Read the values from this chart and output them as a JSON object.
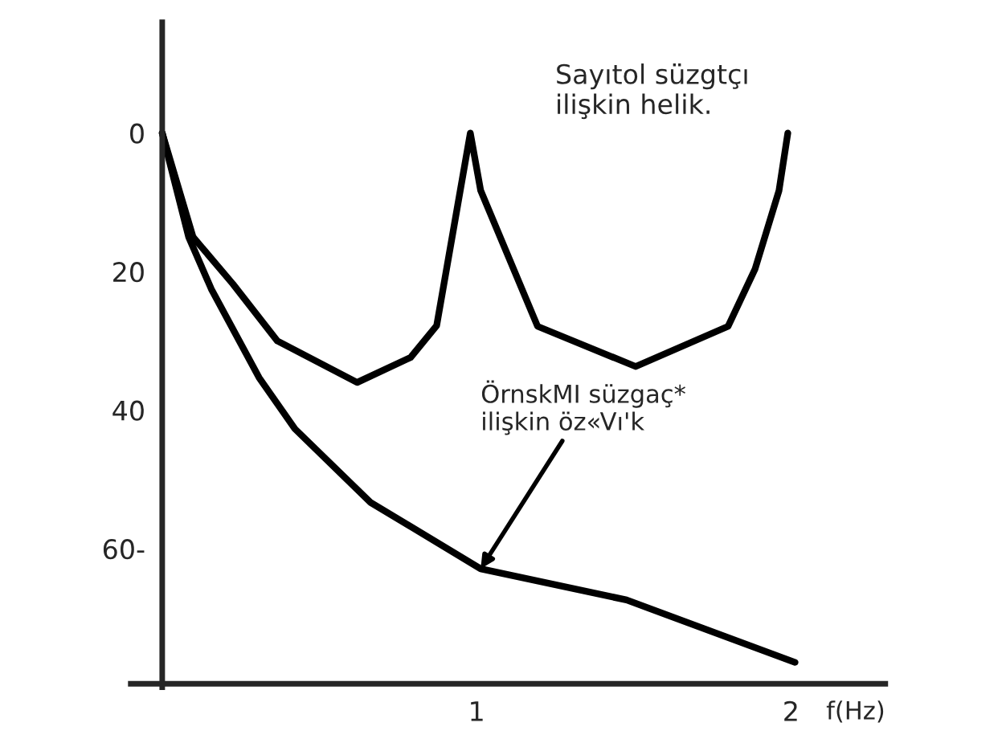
{
  "chart_data": {
    "type": "line",
    "xlabel": "f(Hz)",
    "xlim": [
      -0.1,
      2.3
    ],
    "ylim": [
      80,
      -16
    ],
    "xticks": [
      1,
      2
    ],
    "yticks": [
      0,
      20,
      40,
      {
        "value": 60,
        "label": "60-"
      }
    ],
    "series": [
      {
        "color": "#000000",
        "x": [
          0,
          0.098,
          0.225,
          0.366,
          0.62,
          0.79,
          0.873,
          0.98,
          1.013,
          1.194,
          1.506,
          1.8,
          1.886,
          1.962,
          1.99
        ],
        "values": [
          0,
          15,
          21.8,
          30,
          36,
          32.4,
          27.8,
          0,
          8.3,
          27.9,
          33.7,
          27.9,
          19.6,
          8.3,
          0
        ]
      },
      {
        "color": "#000000",
        "x": [
          0,
          0.084,
          0.156,
          0.308,
          0.422,
          0.662,
          1.013,
          1.477,
          2.013
        ],
        "values": [
          0,
          15,
          22.5,
          35.3,
          42.7,
          53.3,
          62.9,
          67.4,
          76.4
        ]
      }
    ],
    "annotations": [
      "Sayıtol süzgtçı\nilişkin helik.",
      {
        "text": "ÖrnskMI süzgaç*\nilişkin öz«Vı'k",
        "x": 1.013,
        "y": 62.9
      }
    ],
    "grid": false,
    "legend": false,
    "marker": "none",
    "line_style": "solid"
  }
}
